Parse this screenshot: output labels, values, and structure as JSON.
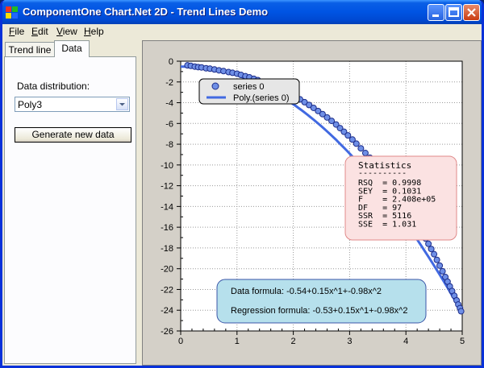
{
  "window": {
    "title": "ComponentOne Chart.Net 2D - Trend Lines Demo"
  },
  "menu": [
    {
      "label": "File",
      "mnemonic": "F",
      "rest": "ile"
    },
    {
      "label": "Edit",
      "mnemonic": "E",
      "rest": "dit"
    },
    {
      "label": "View",
      "mnemonic": "V",
      "rest": "iew"
    },
    {
      "label": "Help",
      "mnemonic": "H",
      "rest": "elp"
    }
  ],
  "tabs": [
    {
      "label": "Trend line"
    },
    {
      "label": "Data"
    }
  ],
  "data_tab": {
    "distribution_label": "Data distribution:",
    "distribution_value": "Poly3",
    "generate_label": "Generate new data"
  },
  "colors": {
    "series": "#4169e1",
    "marker_fill": "#6f8fe6",
    "stats_bg": "#fbe2e2",
    "stats_border": "#e08a8a",
    "formula_bg": "#b6e0ec",
    "formula_border": "#3b56a8"
  },
  "chart_data": {
    "type": "scatter",
    "xlim": [
      0,
      5
    ],
    "ylim": [
      -26,
      0
    ],
    "xticks": [
      0,
      1,
      2,
      3,
      4,
      5
    ],
    "yticks": [
      0,
      -2,
      -4,
      -6,
      -8,
      -10,
      -12,
      -14,
      -16,
      -18,
      -20,
      -22,
      -24,
      -26
    ],
    "grid": true,
    "legend": {
      "placement": "top-left",
      "entries": [
        "series 0",
        "Poly.(series 0)"
      ]
    },
    "series": [
      {
        "name": "series 0",
        "x": [
          0.12,
          0.18,
          0.25,
          0.31,
          0.37,
          0.45,
          0.52,
          0.6,
          0.68,
          0.76,
          0.85,
          0.92,
          1.0,
          1.07,
          1.15,
          1.22,
          1.3,
          1.37,
          1.45,
          1.52,
          1.6,
          1.68,
          1.75,
          1.83,
          1.9,
          1.97,
          2.05,
          2.12,
          2.2,
          2.28,
          2.36,
          2.44,
          2.52,
          2.6,
          2.68,
          2.76,
          2.83,
          2.9,
          2.97,
          3.05,
          3.12,
          3.2,
          3.28,
          3.36,
          3.44,
          3.52,
          3.6,
          3.68,
          3.75,
          3.82,
          3.88,
          3.94,
          4.0,
          4.06,
          4.12,
          4.18,
          4.24,
          4.3,
          4.35,
          4.4,
          4.45,
          4.5,
          4.55,
          4.6,
          4.65,
          4.7,
          4.74,
          4.78,
          4.82,
          4.86,
          4.9,
          4.93,
          4.96,
          4.98
        ],
        "y": [
          -0.4,
          -0.45,
          -0.52,
          -0.57,
          -0.6,
          -0.68,
          -0.72,
          -0.8,
          -0.88,
          -0.95,
          -1.05,
          -1.12,
          -1.2,
          -1.32,
          -1.45,
          -1.55,
          -1.7,
          -1.82,
          -1.98,
          -2.1,
          -2.28,
          -2.45,
          -2.62,
          -2.82,
          -3.0,
          -3.2,
          -3.45,
          -3.68,
          -3.95,
          -4.22,
          -4.5,
          -4.8,
          -5.1,
          -5.42,
          -5.75,
          -6.1,
          -6.45,
          -6.8,
          -7.15,
          -7.55,
          -7.95,
          -8.4,
          -8.85,
          -9.3,
          -9.8,
          -10.3,
          -10.8,
          -11.35,
          -11.9,
          -12.4,
          -12.9,
          -13.4,
          -13.9,
          -14.4,
          -14.95,
          -15.5,
          -16.05,
          -16.6,
          -17.1,
          -17.6,
          -18.1,
          -18.6,
          -19.15,
          -19.7,
          -20.25,
          -20.8,
          -21.25,
          -21.7,
          -22.15,
          -22.6,
          -23.05,
          -23.45,
          -23.8,
          -24.1
        ]
      },
      {
        "name": "Poly.(series 0)",
        "coefficients": [
          -0.53,
          0.15,
          -0.98
        ],
        "x_range": [
          0,
          5
        ]
      }
    ],
    "statistics": {
      "title": "Statistics",
      "separator": "----------",
      "lines": [
        "RSQ  = 0.9998",
        "SEY  = 0.1031",
        "F    = 2.408e+05",
        "DF   = 97",
        "SSR  = 5116",
        "SSE  = 1.031"
      ]
    },
    "formulas": {
      "data": "Data formula: -0.54+0.15x^1+-0.98x^2",
      "regression": "Regression formula: -0.53+0.15x^1+-0.98x^2"
    }
  }
}
